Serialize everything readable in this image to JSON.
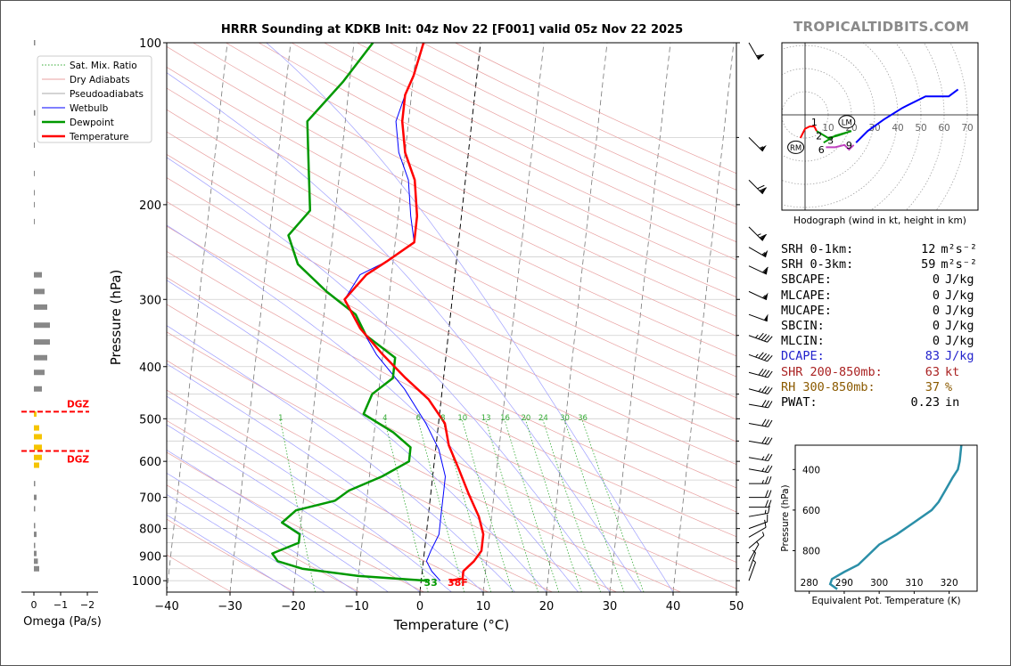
{
  "brand": "TROPICALTIDBITS.COM",
  "title": "HRRR Sounding at KDKB Init: 04z Nov 22 [F001] valid 05z Nov 22 2025",
  "colors": {
    "temperature": "#ff0000",
    "dewpoint": "#009900",
    "wetbulb": "#0000ff",
    "dry": "#e8a0a0",
    "pseudo": "#a0a0ff",
    "mix": "#33aa33",
    "dcape": "#2222cc",
    "shr": "#aa2222",
    "rh": "#8b5a00",
    "theta": "#2b8fa8"
  },
  "chart_data": [
    {
      "type": "line",
      "name": "skew-t",
      "xlabel": "Temperature (°C)",
      "ylabel": "Pressure (hPa)",
      "xlim": [
        -40,
        50
      ],
      "ylim": [
        1050,
        100
      ],
      "y_scale": "log",
      "x_ticks": [
        -40,
        -30,
        -20,
        -10,
        0,
        10,
        20,
        30,
        40,
        50
      ],
      "x_tick_labels": [
        "−40",
        "−30",
        "−20",
        "−10",
        "0",
        "10",
        "20",
        "30",
        "40",
        "50"
      ],
      "y_ticks": [
        100,
        200,
        300,
        400,
        500,
        600,
        700,
        800,
        900,
        1000
      ],
      "legend": {
        "position": "top-left",
        "entries": [
          "Sat. Mix. Ratio",
          "Dry Adiabats",
          "Pseudoadiabats",
          "Wetbulb",
          "Dewpoint",
          "Temperature"
        ]
      },
      "mixing_ratio_labels": [
        "1",
        "4",
        "6",
        "8",
        "10",
        "13",
        "16",
        "20",
        "24",
        "30",
        "36"
      ],
      "mixing_ratio_values": [
        1,
        4,
        6,
        8,
        10,
        13,
        16,
        20,
        24,
        30,
        36
      ],
      "series": [
        {
          "name": "Temperature",
          "points": [
            [
              4.5,
              1000
            ],
            [
              6.5,
              990
            ],
            [
              6.5,
              960
            ],
            [
              8,
              920
            ],
            [
              9,
              880
            ],
            [
              9,
              820
            ],
            [
              8,
              760
            ],
            [
              6,
              690
            ],
            [
              4,
              620
            ],
            [
              2,
              560
            ],
            [
              1,
              510
            ],
            [
              -2,
              460
            ],
            [
              -6,
              420
            ],
            [
              -10,
              380
            ],
            [
              -14,
              340
            ],
            [
              -17,
              300
            ],
            [
              -14,
              270
            ],
            [
              -11,
              255
            ],
            [
              -7,
              235
            ],
            [
              -7,
              210
            ],
            [
              -8,
              180
            ],
            [
              -10,
              160
            ],
            [
              -11,
              140
            ],
            [
              -11,
              125
            ],
            [
              -10,
              115
            ],
            [
              -9,
              100
            ]
          ]
        },
        {
          "name": "Dewpoint",
          "points": [
            [
              1,
              1000
            ],
            [
              -10,
              980
            ],
            [
              -19,
              950
            ],
            [
              -23,
              920
            ],
            [
              -24,
              890
            ],
            [
              -20,
              850
            ],
            [
              -20,
              820
            ],
            [
              -23,
              780
            ],
            [
              -21,
              740
            ],
            [
              -15,
              710
            ],
            [
              -13,
              680
            ],
            [
              -8,
              640
            ],
            [
              -4,
              600
            ],
            [
              -4,
              565
            ],
            [
              -7,
              530
            ],
            [
              -12,
              490
            ],
            [
              -11,
              450
            ],
            [
              -8,
              420
            ],
            [
              -8,
              385
            ],
            [
              -13,
              350
            ],
            [
              -15,
              320
            ],
            [
              -20,
              290
            ],
            [
              -25,
              258
            ],
            [
              -27,
              228
            ],
            [
              -24,
              205
            ],
            [
              -25,
              170
            ],
            [
              -26,
              140
            ],
            [
              -21,
              118
            ],
            [
              -17,
              100
            ]
          ]
        },
        {
          "name": "Wetbulb",
          "points": [
            [
              3,
              1000
            ],
            [
              1.5,
              960
            ],
            [
              0.5,
              920
            ],
            [
              1,
              880
            ],
            [
              2,
              820
            ],
            [
              2,
              760
            ],
            [
              2,
              720
            ],
            [
              2,
              680
            ],
            [
              2,
              640
            ],
            [
              0.5,
              570
            ],
            [
              -2,
              510
            ],
            [
              -6,
              440
            ],
            [
              -11,
              380
            ],
            [
              -17,
              300
            ],
            [
              -15,
              270
            ],
            [
              -11,
              255
            ],
            [
              -7,
              235
            ],
            [
              -8,
              210
            ],
            [
              -9,
              180
            ],
            [
              -11,
              160
            ],
            [
              -12,
              140
            ],
            [
              -11,
              125
            ],
            [
              -10,
              115
            ],
            [
              -9,
              100
            ]
          ]
        }
      ],
      "surface_labels": {
        "dewpoint": "33",
        "temperature": "38F"
      }
    },
    {
      "type": "bar",
      "name": "omega",
      "xlabel": "Omega (Pa/s)",
      "x_ticks": [
        0,
        -1,
        -2
      ],
      "x_tick_labels": [
        "0",
        "−1",
        "−2"
      ],
      "markers": [
        {
          "label": "DGZ",
          "pressure": 485
        },
        {
          "label": "DGZ",
          "pressure": 574
        }
      ],
      "bars": [
        [
          100,
          -0.05
        ],
        [
          135,
          -0.05
        ],
        [
          155,
          -0.02
        ],
        [
          175,
          -0.02
        ],
        [
          190,
          -0.02
        ],
        [
          200,
          -0.02
        ],
        [
          215,
          -0.02
        ],
        [
          270,
          -0.3
        ],
        [
          290,
          -0.4
        ],
        [
          310,
          -0.5
        ],
        [
          335,
          -0.6
        ],
        [
          360,
          -0.6
        ],
        [
          385,
          -0.5
        ],
        [
          410,
          -0.4
        ],
        [
          440,
          -0.3
        ],
        [
          490,
          -0.1
        ],
        [
          520,
          -0.2
        ],
        [
          540,
          -0.3
        ],
        [
          565,
          -0.3
        ],
        [
          590,
          -0.3
        ],
        [
          610,
          -0.2
        ],
        [
          660,
          -0.05
        ],
        [
          700,
          -0.1
        ],
        [
          735,
          -0.05
        ],
        [
          790,
          -0.05
        ],
        [
          820,
          -0.1
        ],
        [
          860,
          -0.05
        ],
        [
          890,
          -0.1
        ],
        [
          920,
          -0.15
        ],
        [
          950,
          -0.2
        ]
      ]
    },
    {
      "type": "line",
      "name": "hodograph",
      "xlabel": "Hodograph (wind in kt, height in km)",
      "ring_labels": [
        "10",
        "20",
        "30",
        "40",
        "50",
        "60",
        "70"
      ],
      "ring_values": [
        10,
        20,
        30,
        40,
        50,
        60,
        70
      ],
      "height_labels": [
        {
          "label": "1",
          "u": 4,
          "v": -3
        },
        {
          "label": "2",
          "u": 6,
          "v": -9
        },
        {
          "label": "3",
          "u": 11,
          "v": -11
        },
        {
          "label": "6",
          "u": 7,
          "v": -15
        },
        {
          "label": "9",
          "u": 19,
          "v": -13
        }
      ],
      "storm_motion": [
        {
          "label": "RM",
          "u": -4,
          "v": -14
        },
        {
          "label": "LM",
          "u": 18,
          "v": -3
        }
      ],
      "segments": [
        {
          "color": "red",
          "points": [
            [
              -2,
              -10
            ],
            [
              0,
              -6
            ],
            [
              2,
              -5
            ],
            [
              4,
              -5
            ],
            [
              5,
              -7
            ]
          ]
        },
        {
          "color": "green",
          "points": [
            [
              5,
              -7
            ],
            [
              10,
              -10
            ],
            [
              14,
              -9
            ],
            [
              20,
              -7
            ],
            [
              13,
              -9
            ],
            [
              8,
              -12
            ]
          ]
        },
        {
          "color": "magenta",
          "points": [
            [
              9,
              -14
            ],
            [
              13,
              -14
            ],
            [
              17,
              -13
            ],
            [
              19,
              -15
            ],
            [
              21,
              -13
            ]
          ]
        },
        {
          "color": "blue",
          "points": [
            [
              22,
              -12
            ],
            [
              27,
              -7
            ],
            [
              34,
              -2
            ],
            [
              42,
              3
            ],
            [
              52,
              8
            ],
            [
              62,
              8
            ],
            [
              66,
              11
            ]
          ]
        }
      ]
    },
    {
      "type": "line",
      "name": "theta-e profile",
      "xlabel": "Equivalent Pot. Temperature (K)",
      "ylabel": "Pressure (hPa)",
      "xlim": [
        276,
        328
      ],
      "ylim": [
        1000,
        280
      ],
      "x_ticks": [
        280,
        290,
        300,
        310,
        320
      ],
      "y_ticks": [
        400,
        600,
        800
      ],
      "points": [
        [
          288,
          990
        ],
        [
          286,
          965
        ],
        [
          286.5,
          940
        ],
        [
          290,
          905
        ],
        [
          294,
          870
        ],
        [
          297,
          820
        ],
        [
          300,
          770
        ],
        [
          305,
          720
        ],
        [
          310,
          660
        ],
        [
          315,
          600
        ],
        [
          317,
          560
        ],
        [
          319,
          500
        ],
        [
          321,
          440
        ],
        [
          322.5,
          400
        ],
        [
          323,
          360
        ],
        [
          323.3,
          310
        ],
        [
          323.5,
          280
        ]
      ]
    }
  ],
  "hodo_legend": "Hodograph (wind in kt, height in km)",
  "stats": [
    {
      "label": "SRH 0-1km:",
      "value": "12",
      "unit": "m²s⁻²",
      "color": "#000000"
    },
    {
      "label": "SRH 0-3km:",
      "value": "59",
      "unit": "m²s⁻²",
      "color": "#000000"
    },
    {
      "label": "SBCAPE:",
      "value": "0",
      "unit": "J/kg",
      "color": "#000000"
    },
    {
      "label": "MLCAPE:",
      "value": "0",
      "unit": "J/kg",
      "color": "#000000"
    },
    {
      "label": "MUCAPE:",
      "value": "0",
      "unit": "J/kg",
      "color": "#000000"
    },
    {
      "label": "SBCIN:",
      "value": "0",
      "unit": "J/kg",
      "color": "#000000"
    },
    {
      "label": "MLCIN:",
      "value": "0",
      "unit": "J/kg",
      "color": "#000000"
    },
    {
      "label": "DCAPE:",
      "value": "83",
      "unit": "J/kg",
      "color": "#2222cc"
    },
    {
      "label": "SHR 200-850mb:",
      "value": "63",
      "unit": "kt",
      "color": "#aa2222"
    },
    {
      "label": "RH 300-850mb:",
      "value": "37",
      "unit": "%",
      "color": "#8b5a00"
    },
    {
      "label": "PWAT:",
      "value": "0.23",
      "unit": "in",
      "color": "#000000"
    }
  ],
  "barbs": [
    [
      100,
      330,
      60
    ],
    [
      150,
      315,
      55
    ],
    [
      180,
      315,
      70
    ],
    [
      220,
      315,
      65
    ],
    [
      240,
      300,
      55
    ],
    [
      260,
      295,
      60
    ],
    [
      290,
      295,
      55
    ],
    [
      320,
      290,
      50
    ],
    [
      350,
      290,
      45
    ],
    [
      380,
      290,
      45
    ],
    [
      410,
      285,
      40
    ],
    [
      440,
      285,
      35
    ],
    [
      470,
      280,
      30
    ],
    [
      510,
      280,
      30
    ],
    [
      550,
      280,
      30
    ],
    [
      590,
      280,
      25
    ],
    [
      620,
      280,
      25
    ],
    [
      660,
      270,
      25
    ],
    [
      700,
      270,
      20
    ],
    [
      730,
      270,
      20
    ],
    [
      760,
      260,
      15
    ],
    [
      800,
      250,
      10
    ],
    [
      830,
      240,
      10
    ],
    [
      870,
      230,
      5
    ],
    [
      920,
      210,
      5
    ],
    [
      960,
      200,
      5
    ],
    [
      1000,
      200,
      5
    ]
  ]
}
